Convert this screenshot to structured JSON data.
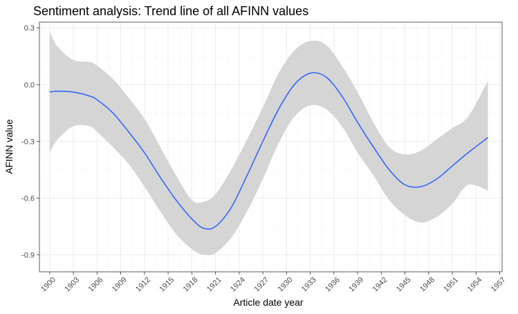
{
  "chart_data": {
    "type": "line",
    "title": "Sentiment analysis: Trend line of all AFINN values",
    "xlabel": "Article date year",
    "ylabel": "AFINN value",
    "xlim": [
      1898.7,
      1957.3
    ],
    "ylim": [
      -0.99,
      0.33
    ],
    "x_ticks": [
      1900,
      1903,
      1906,
      1909,
      1912,
      1915,
      1918,
      1921,
      1924,
      1927,
      1930,
      1933,
      1936,
      1939,
      1942,
      1945,
      1948,
      1951,
      1954,
      1957
    ],
    "y_ticks": [
      0.3,
      0.0,
      -0.3,
      -0.6,
      -0.9
    ],
    "y_tick_labels": [
      "0.3",
      "0.0",
      "-0.3",
      "-0.6",
      "-0.9"
    ],
    "grid": true,
    "legend": "none",
    "series": [
      {
        "x": [
          1900,
          1901,
          1903,
          1905,
          1906,
          1908,
          1910,
          1912,
          1914,
          1916,
          1918,
          1919.5,
          1921,
          1923,
          1925,
          1927,
          1929,
          1931,
          1933,
          1935,
          1937,
          1939,
          1941,
          1943,
          1945,
          1947,
          1949,
          1951,
          1953,
          1955.5
        ],
        "y": [
          -0.04,
          -0.035,
          -0.04,
          -0.06,
          -0.08,
          -0.15,
          -0.25,
          -0.36,
          -0.49,
          -0.61,
          -0.71,
          -0.76,
          -0.75,
          -0.65,
          -0.48,
          -0.3,
          -0.13,
          0.0,
          0.06,
          0.04,
          -0.06,
          -0.2,
          -0.33,
          -0.45,
          -0.53,
          -0.54,
          -0.5,
          -0.43,
          -0.36,
          -0.28
        ],
        "ci_upper": [
          0.28,
          0.2,
          0.13,
          0.12,
          0.1,
          0.03,
          -0.07,
          -0.18,
          -0.33,
          -0.48,
          -0.61,
          -0.62,
          -0.58,
          -0.45,
          -0.29,
          -0.12,
          0.06,
          0.18,
          0.23,
          0.21,
          0.1,
          -0.04,
          -0.2,
          -0.33,
          -0.37,
          -0.35,
          -0.29,
          -0.23,
          -0.17,
          0.02
        ],
        "ci_lower": [
          -0.36,
          -0.29,
          -0.22,
          -0.22,
          -0.25,
          -0.33,
          -0.42,
          -0.54,
          -0.67,
          -0.79,
          -0.87,
          -0.9,
          -0.89,
          -0.81,
          -0.67,
          -0.5,
          -0.31,
          -0.17,
          -0.11,
          -0.13,
          -0.22,
          -0.36,
          -0.48,
          -0.61,
          -0.69,
          -0.73,
          -0.7,
          -0.63,
          -0.53,
          -0.56
        ]
      }
    ],
    "colors": {
      "line": "#3366FF",
      "ribbon": "#D3D3D3",
      "grid_major": "#EBEBEB",
      "grid_minor": "#F5F5F5",
      "panel_border": "#333333",
      "tick_label": "#4D4D4D"
    }
  }
}
